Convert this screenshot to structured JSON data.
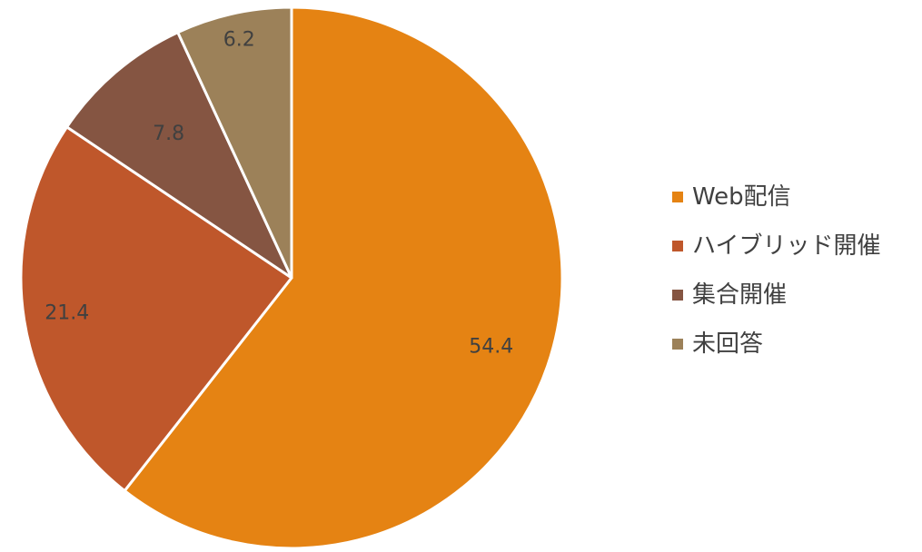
{
  "chart_data": {
    "type": "pie",
    "categories": [
      "Web配信",
      "ハイブリッド開催",
      "集合開催",
      "未回答"
    ],
    "values": [
      54.4,
      21.4,
      7.8,
      6.2
    ],
    "data_labels": [
      "54.4",
      "21.4",
      "7.8",
      "6.2"
    ],
    "colors": [
      "#E58313",
      "#BF572B",
      "#855542",
      "#9C8159"
    ],
    "legend_placement": "right",
    "start_angle": "12 o'clock",
    "direction": "clockwise"
  }
}
